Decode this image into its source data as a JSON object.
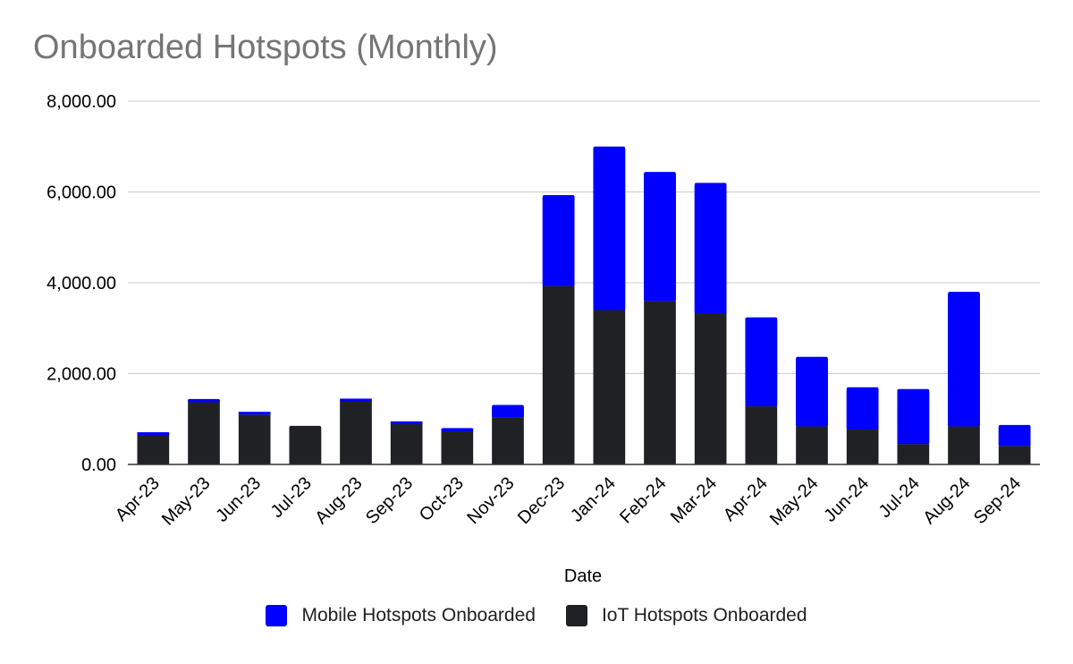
{
  "chart_data": {
    "type": "bar",
    "stacked": true,
    "title": "Onboarded Hotspots (Monthly)",
    "xlabel": "Date",
    "ylabel": "",
    "ylim": [
      0,
      8000
    ],
    "yticks": [
      0,
      2000,
      4000,
      6000,
      8000
    ],
    "ytick_labels": [
      "0.00",
      "2,000.00",
      "4,000.00",
      "6,000.00",
      "8,000.00"
    ],
    "grid": true,
    "legend_position": "bottom",
    "categories": [
      "Apr-23",
      "May-23",
      "Jun-23",
      "Jul-23",
      "Aug-23",
      "Sep-23",
      "Oct-23",
      "Nov-23",
      "Dec-23",
      "Jan-24",
      "Feb-24",
      "Mar-24",
      "Apr-24",
      "May-24",
      "Jun-24",
      "Jul-24",
      "Aug-24",
      "Sep-24"
    ],
    "series": [
      {
        "name": "IoT Hotspots Onboarded",
        "color": "#202124",
        "values": [
          650,
          1370,
          1100,
          850,
          1390,
          890,
          730,
          1040,
          3930,
          3400,
          3600,
          3330,
          1280,
          840,
          770,
          450,
          840,
          410
        ]
      },
      {
        "name": "Mobile Hotspots Onboarded",
        "color": "#0000ff",
        "values": [
          40,
          70,
          50,
          0,
          40,
          40,
          70,
          270,
          2000,
          3600,
          2840,
          2870,
          1960,
          1530,
          930,
          1210,
          2960,
          460
        ]
      }
    ],
    "legend": [
      {
        "name": "Mobile Hotspots Onboarded",
        "color": "#0000ff"
      },
      {
        "name": "IoT Hotspots Onboarded",
        "color": "#202124"
      }
    ]
  }
}
